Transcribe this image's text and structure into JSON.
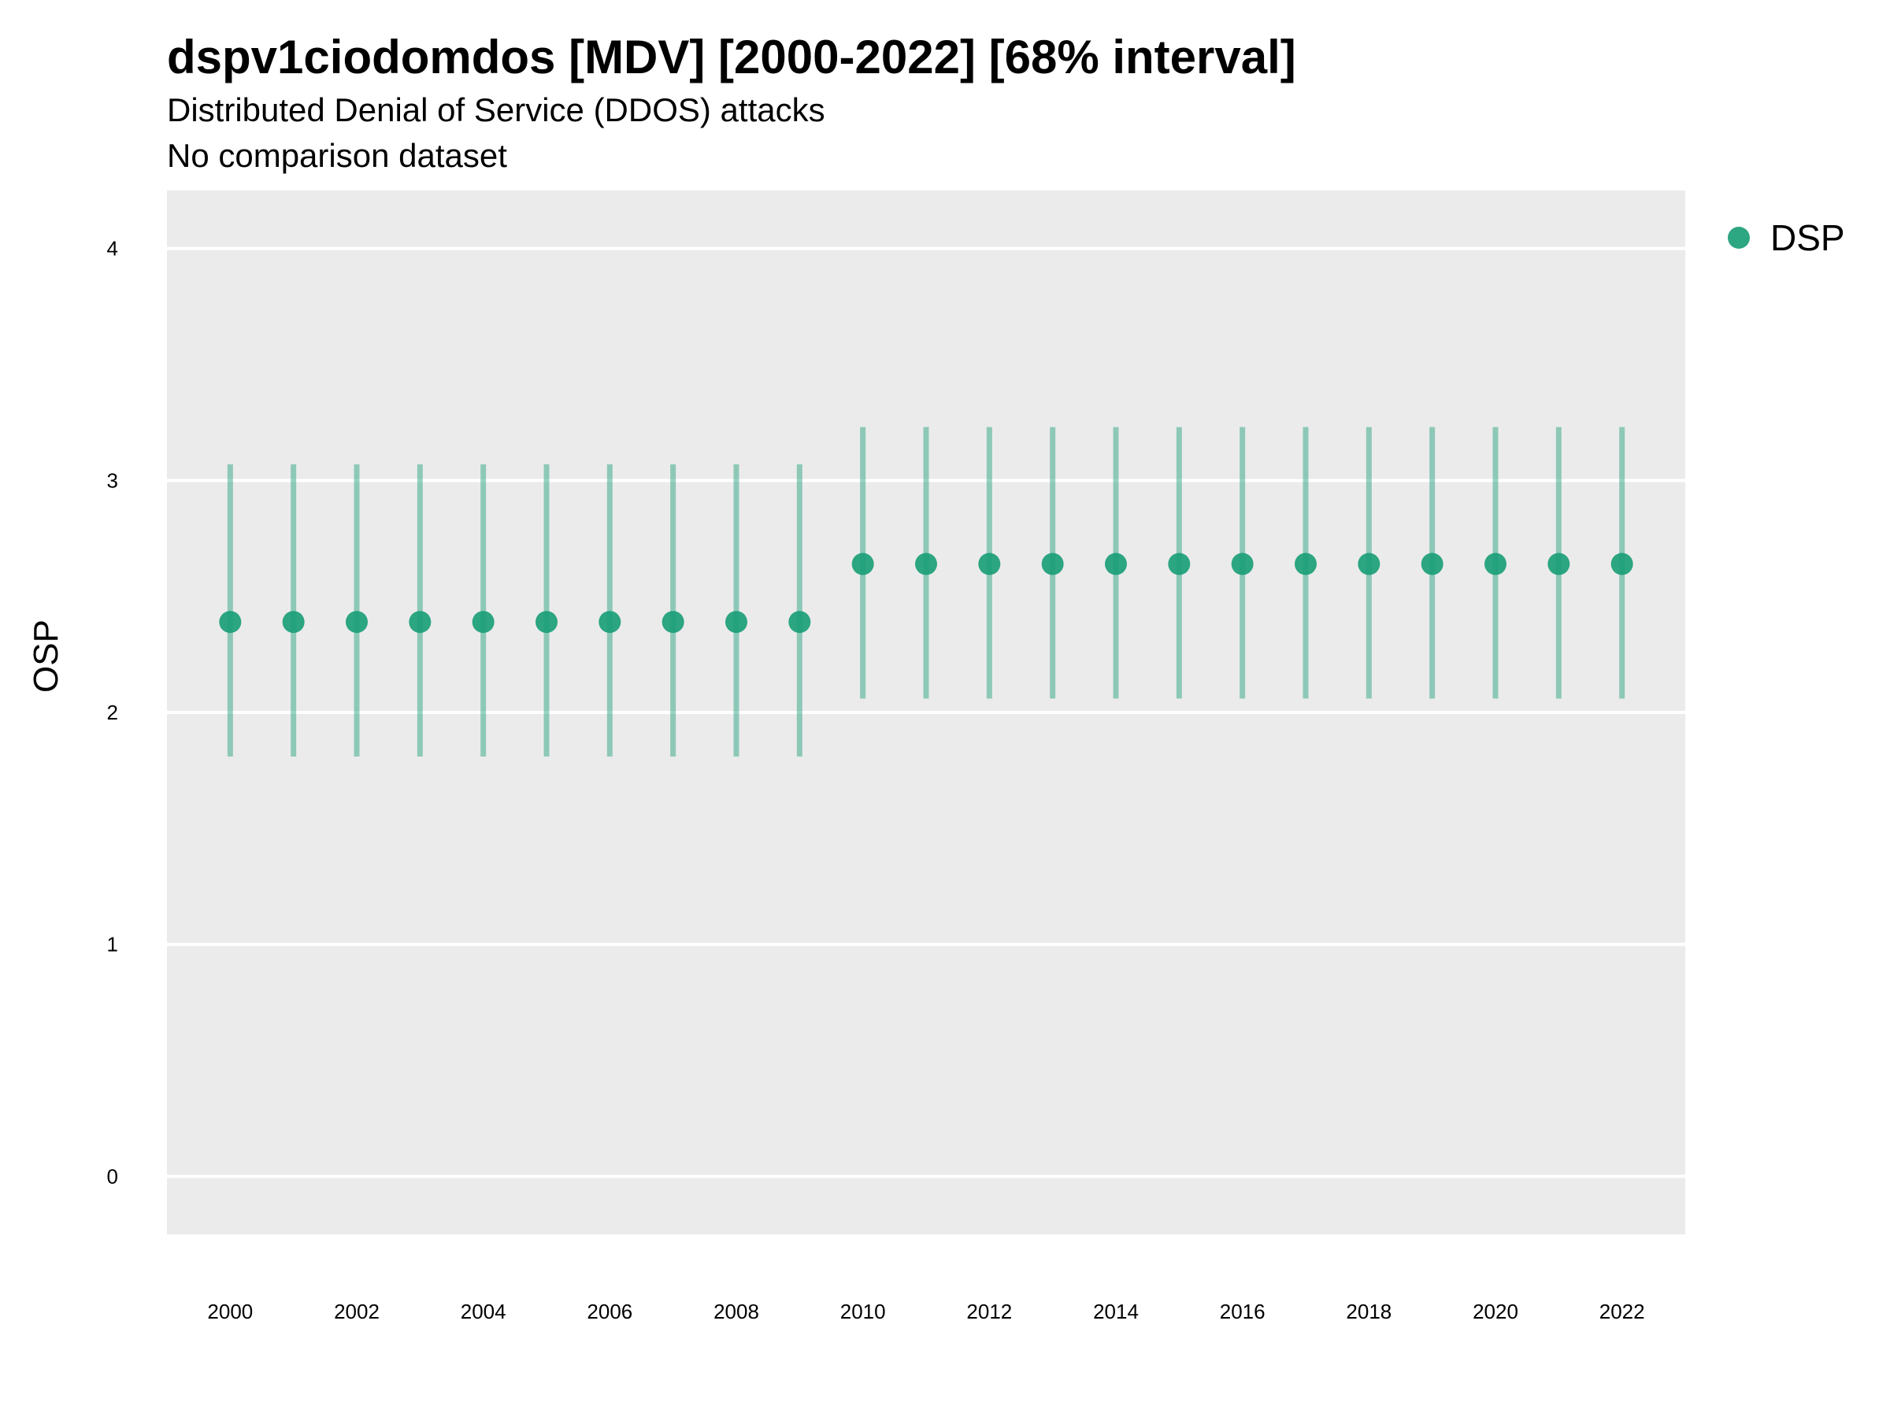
{
  "chart_data": {
    "type": "scatter",
    "title": "dspv1ciodomdos [MDV] [2000-2022] [68% interval]",
    "subtitle": "Distributed Denial of Service (DDOS) attacks",
    "subtitle2": "No comparison dataset",
    "xlabel": "",
    "ylabel": "OSP",
    "ylim": [
      -0.25,
      4.25
    ],
    "xlim": [
      1999,
      2023
    ],
    "y_ticks": [
      0,
      1,
      2,
      3,
      4
    ],
    "x_ticks": [
      2000,
      2002,
      2004,
      2006,
      2008,
      2010,
      2012,
      2014,
      2016,
      2018,
      2020,
      2022
    ],
    "grid": true,
    "legend_position": "top-right",
    "colors": {
      "series": "#1b9e77",
      "panel": "#ebebeb",
      "grid": "#ffffff"
    },
    "series": [
      {
        "name": "DSP",
        "x": [
          2000,
          2001,
          2002,
          2003,
          2004,
          2005,
          2006,
          2007,
          2008,
          2009,
          2010,
          2011,
          2012,
          2013,
          2014,
          2015,
          2016,
          2017,
          2018,
          2019,
          2020,
          2021,
          2022
        ],
        "y": [
          2.39,
          2.39,
          2.39,
          2.39,
          2.39,
          2.39,
          2.39,
          2.39,
          2.39,
          2.39,
          2.64,
          2.64,
          2.64,
          2.64,
          2.64,
          2.64,
          2.64,
          2.64,
          2.64,
          2.64,
          2.64,
          2.64,
          2.64
        ],
        "lower": [
          1.81,
          1.81,
          1.81,
          1.81,
          1.81,
          1.81,
          1.81,
          1.81,
          1.81,
          1.81,
          2.06,
          2.06,
          2.06,
          2.06,
          2.06,
          2.06,
          2.06,
          2.06,
          2.06,
          2.06,
          2.06,
          2.06,
          2.06
        ],
        "upper": [
          3.07,
          3.07,
          3.07,
          3.07,
          3.07,
          3.07,
          3.07,
          3.07,
          3.07,
          3.07,
          3.23,
          3.23,
          3.23,
          3.23,
          3.23,
          3.23,
          3.23,
          3.23,
          3.23,
          3.23,
          3.23,
          3.23,
          3.23
        ]
      }
    ]
  }
}
